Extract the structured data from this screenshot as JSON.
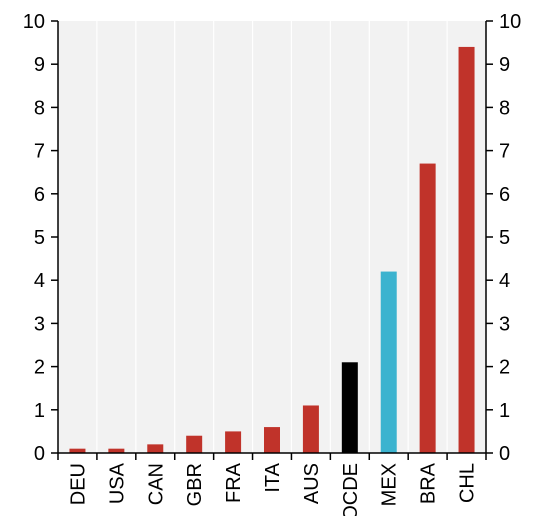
{
  "chart_data": {
    "type": "bar",
    "title": "",
    "xlabel": "",
    "ylabel": "",
    "categories": [
      "DEU",
      "USA",
      "CAN",
      "GBR",
      "FRA",
      "ITA",
      "AUS",
      "OCDE",
      "MEX",
      "BRA",
      "CHL"
    ],
    "values": [
      0.1,
      0.1,
      0.2,
      0.4,
      0.5,
      0.6,
      1.1,
      2.1,
      4.2,
      6.7,
      9.4
    ],
    "bar_colors": [
      "#c0332a",
      "#c0332a",
      "#c0332a",
      "#c0332a",
      "#c0332a",
      "#c0332a",
      "#c0332a",
      "#000000",
      "#3bb3cf",
      "#c0332a",
      "#c0332a"
    ],
    "ylim": [
      0,
      10
    ],
    "yticks": [
      0,
      1,
      2,
      3,
      4,
      5,
      6,
      7,
      8,
      9,
      10
    ],
    "secondary_y_axis": true,
    "grid": "vertical",
    "background": "#f2f2f2",
    "grid_color": "#ffffff"
  }
}
